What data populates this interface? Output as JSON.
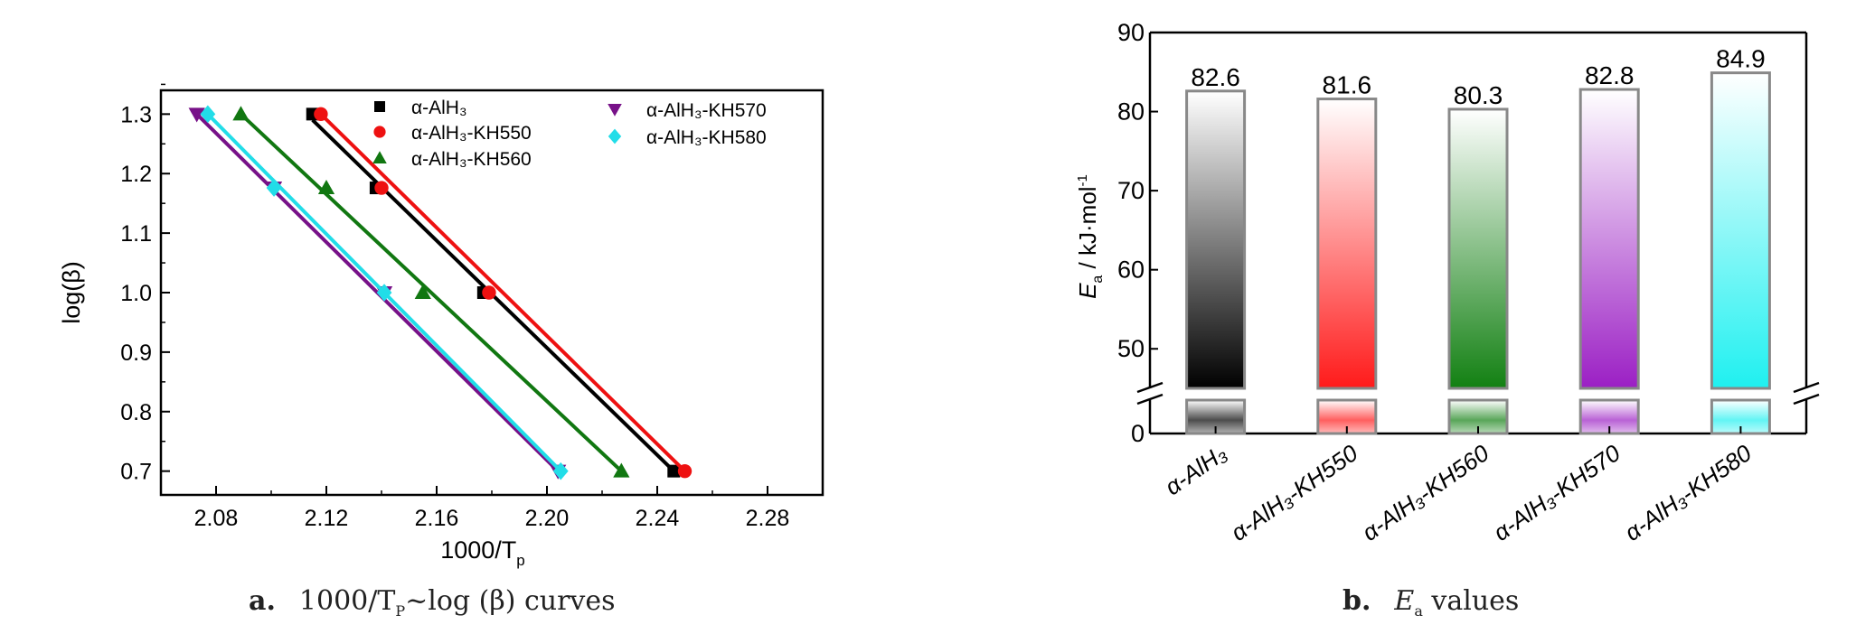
{
  "chart_data": [
    {
      "type": "scatter",
      "caption": {
        "letter": "a.",
        "text": "1000/T",
        "sub": "P",
        "rest": "~log (β) curves"
      },
      "xlabel": "1000/T",
      "xlabel_sub": "p",
      "ylabel": "log(β)",
      "xlim": [
        2.06,
        2.3
      ],
      "ylim": [
        0.66,
        1.34
      ],
      "xticks": [
        "2.08",
        "2.12",
        "2.16",
        "2.20",
        "2.24",
        "2.28"
      ],
      "yticks": [
        "0.7",
        "0.8",
        "0.9",
        "1.0",
        "1.1",
        "1.2",
        "1.3"
      ],
      "legend": [
        "α-AlH₃",
        "α-AlH₃-KH550",
        "α-AlH₃-KH560",
        "α-AlH₃-KH570",
        "α-AlH₃-KH580"
      ],
      "series": [
        {
          "name": "α-AlH₃",
          "color": "#000000",
          "marker": "square",
          "x": [
            2.115,
            2.138,
            2.177,
            2.246
          ],
          "y": [
            1.3,
            1.176,
            1.0,
            0.7
          ],
          "fit": [
            [
              2.115,
              1.29
            ],
            [
              2.246,
              0.7
            ]
          ]
        },
        {
          "name": "α-AlH₃-KH550",
          "color": "#ee1111",
          "marker": "circle",
          "x": [
            2.118,
            2.14,
            2.179,
            2.25
          ],
          "y": [
            1.3,
            1.176,
            1.0,
            0.7
          ],
          "fit": [
            [
              2.118,
              1.3
            ],
            [
              2.25,
              0.7
            ]
          ]
        },
        {
          "name": "α-AlH₃-KH560",
          "color": "#117711",
          "marker": "triangle",
          "x": [
            2.089,
            2.12,
            2.155,
            2.227
          ],
          "y": [
            1.3,
            1.176,
            1.0,
            0.7
          ],
          "fit": [
            [
              2.089,
              1.3
            ],
            [
              2.227,
              0.7
            ]
          ]
        },
        {
          "name": "α-AlH₃-KH570",
          "color": "#771188",
          "marker": "triangle-down",
          "x": [
            2.073,
            2.101,
            2.141,
            2.204
          ],
          "y": [
            1.3,
            1.176,
            1.0,
            0.7
          ],
          "fit": [
            [
              2.073,
              1.3
            ],
            [
              2.204,
              0.7
            ]
          ]
        },
        {
          "name": "α-AlH₃-KH580",
          "color": "#22dde8",
          "marker": "diamond",
          "x": [
            2.077,
            2.101,
            2.141,
            2.205
          ],
          "y": [
            1.3,
            1.176,
            1.0,
            0.7
          ],
          "fit": [
            [
              2.077,
              1.3
            ],
            [
              2.205,
              0.7
            ]
          ]
        }
      ]
    },
    {
      "type": "bar",
      "caption": {
        "letter": "b.",
        "text": "E",
        "sub": "a",
        "rest": " values"
      },
      "ylabel": "E",
      "ylabel_sub": "a",
      "ylabel_unit": " / kJ·mol",
      "ylabel_sup": "-1",
      "yticks_upper": [
        "50",
        "60",
        "70",
        "80",
        "90"
      ],
      "ytick_lower": "0",
      "ylim_upper": [
        45,
        90
      ],
      "ylim_lower": [
        0,
        5
      ],
      "axis_break": true,
      "categories": [
        "α-AlH₃",
        "α-AlH₃-KH550",
        "α-AlH₃-KH560",
        "α-AlH₃-KH570",
        "α-AlH₃-KH580"
      ],
      "values": [
        82.6,
        81.6,
        80.3,
        82.8,
        84.9
      ],
      "value_labels": [
        "82.6",
        "81.6",
        "80.3",
        "82.8",
        "84.9"
      ],
      "colors": [
        "#000000",
        "#ff1a1a",
        "#128012",
        "#9b1fc4",
        "#1ff0f0"
      ]
    }
  ]
}
